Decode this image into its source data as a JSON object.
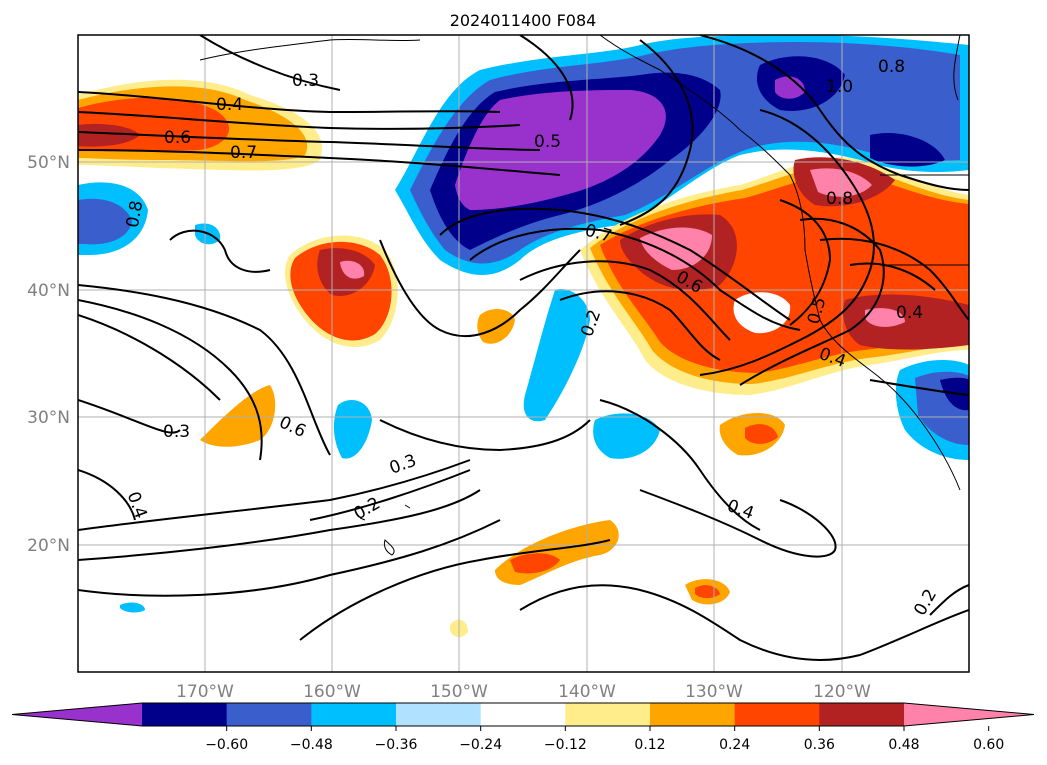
{
  "title": "2024011400 F084",
  "lat_labels": [
    "50°N",
    "40°N",
    "30°N",
    "20°N"
  ],
  "lon_labels": [
    "170°W",
    "160°W",
    "150°W",
    "140°W",
    "130°W",
    "120°W"
  ],
  "colorbar": {
    "colors": [
      "#9932cc",
      "#00008b",
      "#3a5fcd",
      "#00bfff",
      "#b0e2ff",
      "#ffffff",
      "#ffec8b",
      "#ffa500",
      "#ff4500",
      "#b22222",
      "#ff82ab"
    ],
    "tick_labels": [
      "−0.60",
      "−0.48",
      "−0.36",
      "−0.24",
      "−0.12",
      "0.12",
      "0.24",
      "0.36",
      "0.48",
      "0.60"
    ]
  },
  "contour_labels": [
    "0.3",
    "0.4",
    "0.6",
    "0.7",
    "0.8",
    "0.5",
    "0.8",
    "1.0",
    "0.8",
    "0.7",
    "0.6",
    "0.5",
    "0.4",
    "0.4",
    "0.2",
    "0.3",
    "0.6",
    "0.3",
    "0.2",
    "0.4",
    "0.4",
    "0.2"
  ]
}
